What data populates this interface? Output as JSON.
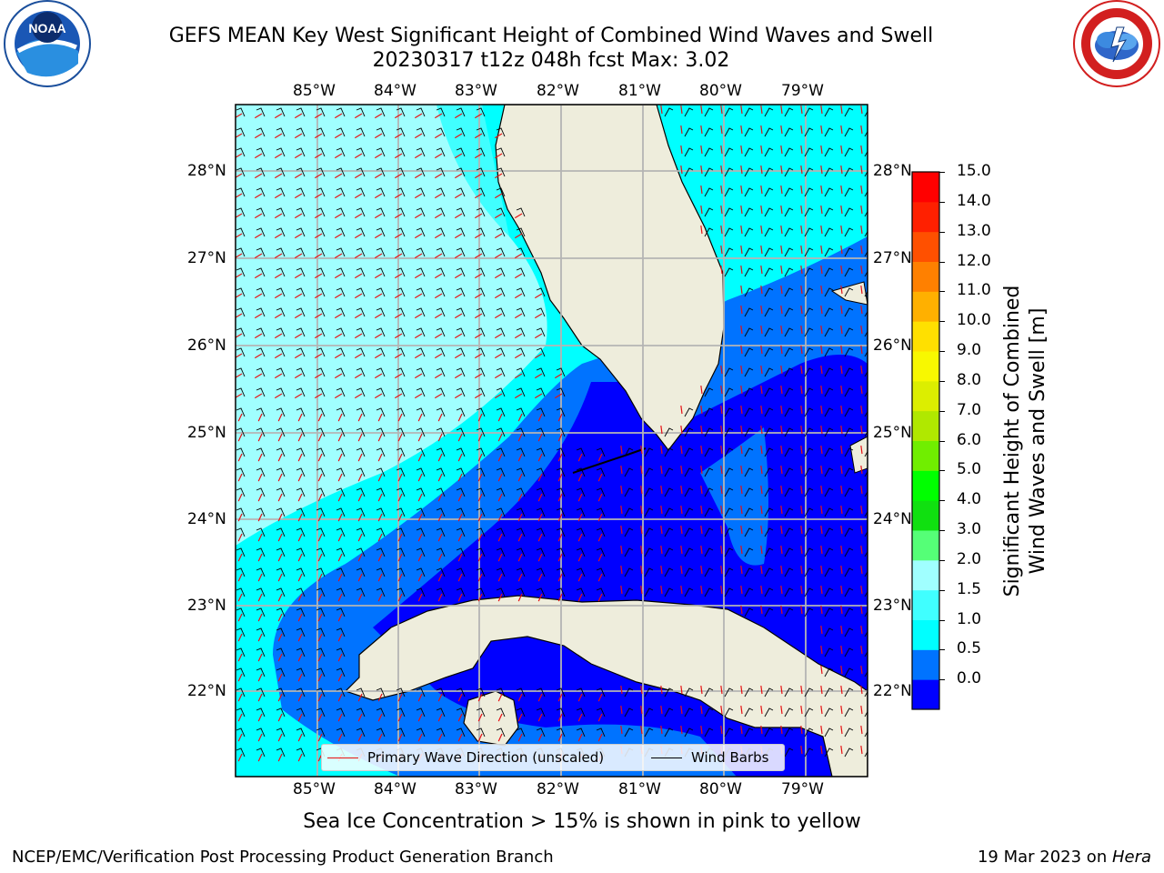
{
  "title_line1": "GEFS MEAN Key West Significant Height of Combined Wind Waves and Swell",
  "title_line2": "20230317 t12z 048h fcst   Max: 3.02",
  "map": {
    "lon_labels": [
      "85°W",
      "84°W",
      "83°W",
      "82°W",
      "81°W",
      "80°W",
      "79°W"
    ],
    "lat_labels": [
      "28°N",
      "27°N",
      "26°N",
      "25°N",
      "24°N",
      "23°N",
      "22°N"
    ],
    "colors": {
      "land": "#eeeddc",
      "grid": "#b4b4b4",
      "coast": "#000000",
      "wave_arrow": "#e81010",
      "wind_barb": "#000000"
    }
  },
  "legend": {
    "wave_label": "Primary Wave Direction (unscaled)",
    "wind_label": "Wind Barbs"
  },
  "colorbar": {
    "label_line1": "Significant Height of Combined",
    "label_line2": "Wind Waves and Swell [m]",
    "ticks": [
      "15.0",
      "14.0",
      "13.0",
      "12.0",
      "11.0",
      "10.0",
      "9.0",
      "8.0",
      "7.0",
      "6.0",
      "5.0",
      "4.0",
      "3.0",
      "2.0",
      "1.5",
      "1.0",
      "0.5",
      "0.0"
    ],
    "colors": [
      "#0000ff",
      "#0073ff",
      "#00ffff",
      "#40ffff",
      "#a0ffff",
      "#55ff77",
      "#10e010",
      "#00ff00",
      "#70ee00",
      "#b0e800",
      "#dcee00",
      "#f8f800",
      "#ffe000",
      "#ffb000",
      "#ff8000",
      "#ff5000",
      "#ff2000",
      "#ff0000"
    ]
  },
  "sea_ice_note": "Sea Ice Concentration > 15% is shown in pink to yellow",
  "footer_left": "NCEP/EMC/Verification Post Processing Product Generation Branch",
  "footer_right_date": "19 Mar 2023 on ",
  "footer_right_host": "Hera",
  "logos": {
    "left_text": "NOAA",
    "right_text": "NATIONAL WEATHER SERVICE",
    "left_ring": "NATIONAL OCEANIC AND ATMOSPHERIC ADMINISTRATION"
  }
}
